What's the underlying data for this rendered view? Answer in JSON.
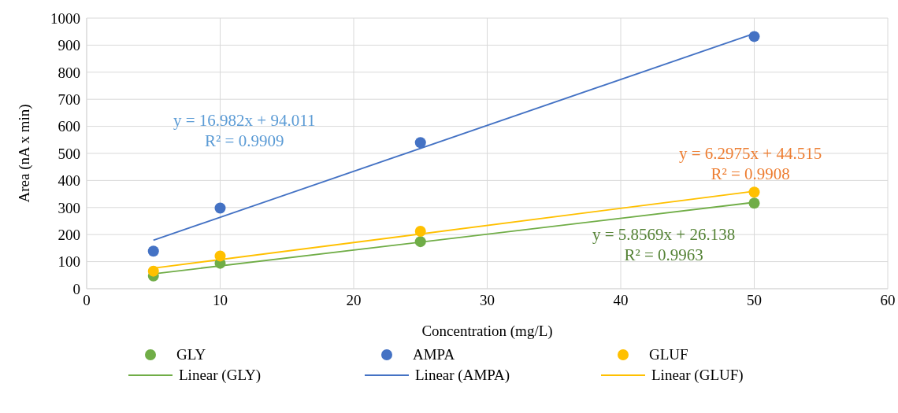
{
  "chart_data": {
    "type": "scatter",
    "xlabel": "Concentration (mg/L)",
    "ylabel": "Area (nA x min)",
    "xlim": [
      0,
      60
    ],
    "xticks": [
      0,
      10,
      20,
      30,
      40,
      50,
      60
    ],
    "ylim": [
      0,
      1000
    ],
    "yticks": [
      0,
      100,
      200,
      300,
      400,
      500,
      600,
      700,
      800,
      900,
      1000
    ],
    "grid": true,
    "legend": "bottom",
    "series": [
      {
        "name": "GLY",
        "color": "#70ad47",
        "marker": "circle",
        "x": [
          5,
          10,
          25,
          50
        ],
        "values": [
          47,
          94,
          174,
          316
        ]
      },
      {
        "name": "AMPA",
        "color": "#4472c4",
        "marker": "circle",
        "x": [
          5,
          10,
          25,
          50
        ],
        "values": [
          139,
          298,
          540,
          932
        ]
      },
      {
        "name": "GLUF",
        "color": "#ffc000",
        "marker": "circle",
        "x": [
          5,
          10,
          25,
          50
        ],
        "values": [
          65,
          121,
          212,
          357
        ]
      },
      {
        "name": "Linear (GLY)",
        "type": "line",
        "color": "#70ad47",
        "marker": "none",
        "x": [
          5,
          50
        ],
        "values": [
          55,
          319
        ]
      },
      {
        "name": "Linear (AMPA)",
        "type": "line",
        "color": "#4472c4",
        "marker": "none",
        "x": [
          5,
          50
        ],
        "values": [
          179,
          943
        ]
      },
      {
        "name": "Linear (GLUF)",
        "type": "line",
        "color": "#ffc000",
        "marker": "none",
        "x": [
          5,
          50
        ],
        "values": [
          76,
          360
        ]
      }
    ],
    "annotations": [
      "y = 16.982x + 94.011\nR² = 0.9909",
      "y = 6.2975x + 44.515\nR² = 0.9908",
      "y = 5.8569x + 26.138\nR² = 0.9963"
    ]
  }
}
